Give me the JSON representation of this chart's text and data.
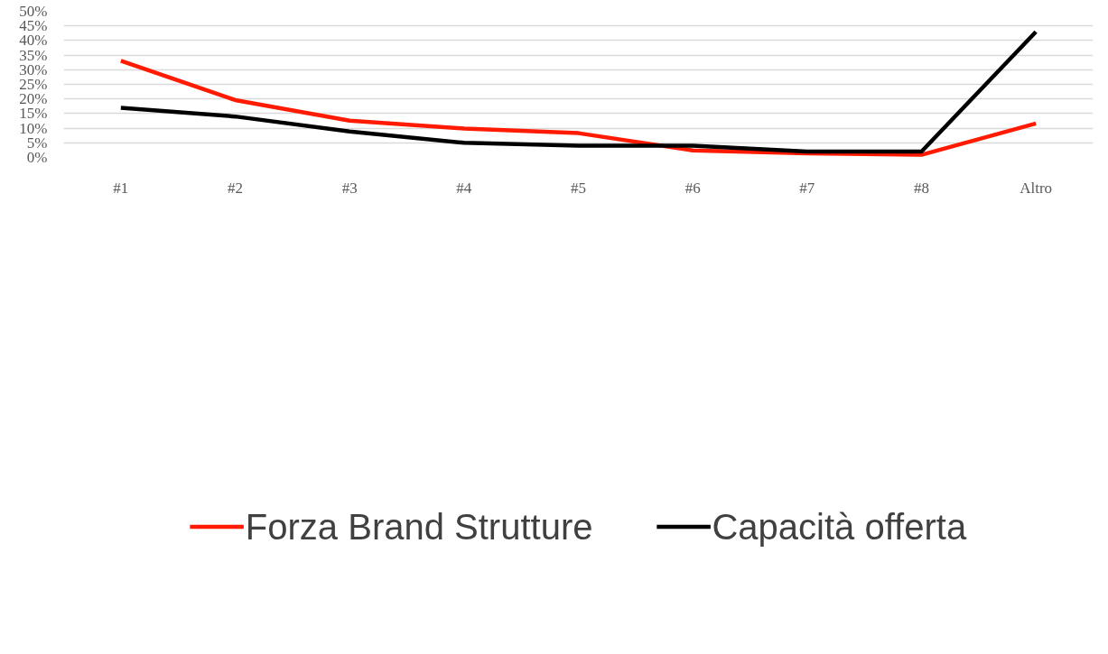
{
  "chart_data": {
    "type": "line",
    "categories": [
      "#1",
      "#2",
      "#3",
      "#4",
      "#5",
      "#6",
      "#7",
      "#8",
      "Altro"
    ],
    "series": [
      {
        "name": "Forza Brand Strutture",
        "color": "#ff1a00",
        "values": [
          33.1,
          19.6,
          12.6,
          9.9,
          8.3,
          2.4,
          1.4,
          0.9,
          11.6
        ]
      },
      {
        "name": "Capacità offerta",
        "color": "#000000",
        "values": [
          17.0,
          14.0,
          8.9,
          5.0,
          4.0,
          4.0,
          2.0,
          2.0,
          43.0
        ]
      }
    ],
    "ylim": [
      0,
      50
    ],
    "yticks": [
      {
        "value": 0,
        "label": "0%"
      },
      {
        "value": 5,
        "label": "5%"
      },
      {
        "value": 10,
        "label": "10%"
      },
      {
        "value": 15,
        "label": "15%"
      },
      {
        "value": 20,
        "label": "20%"
      },
      {
        "value": 25,
        "label": "25%"
      },
      {
        "value": 30,
        "label": "30%"
      },
      {
        "value": 35,
        "label": "35%"
      },
      {
        "value": 40,
        "label": "40%"
      },
      {
        "value": 45,
        "label": "45%"
      },
      {
        "value": 50,
        "label": "50%"
      }
    ],
    "grid": "y",
    "legend": "bottom",
    "marker": "none",
    "line_style": "solid"
  }
}
